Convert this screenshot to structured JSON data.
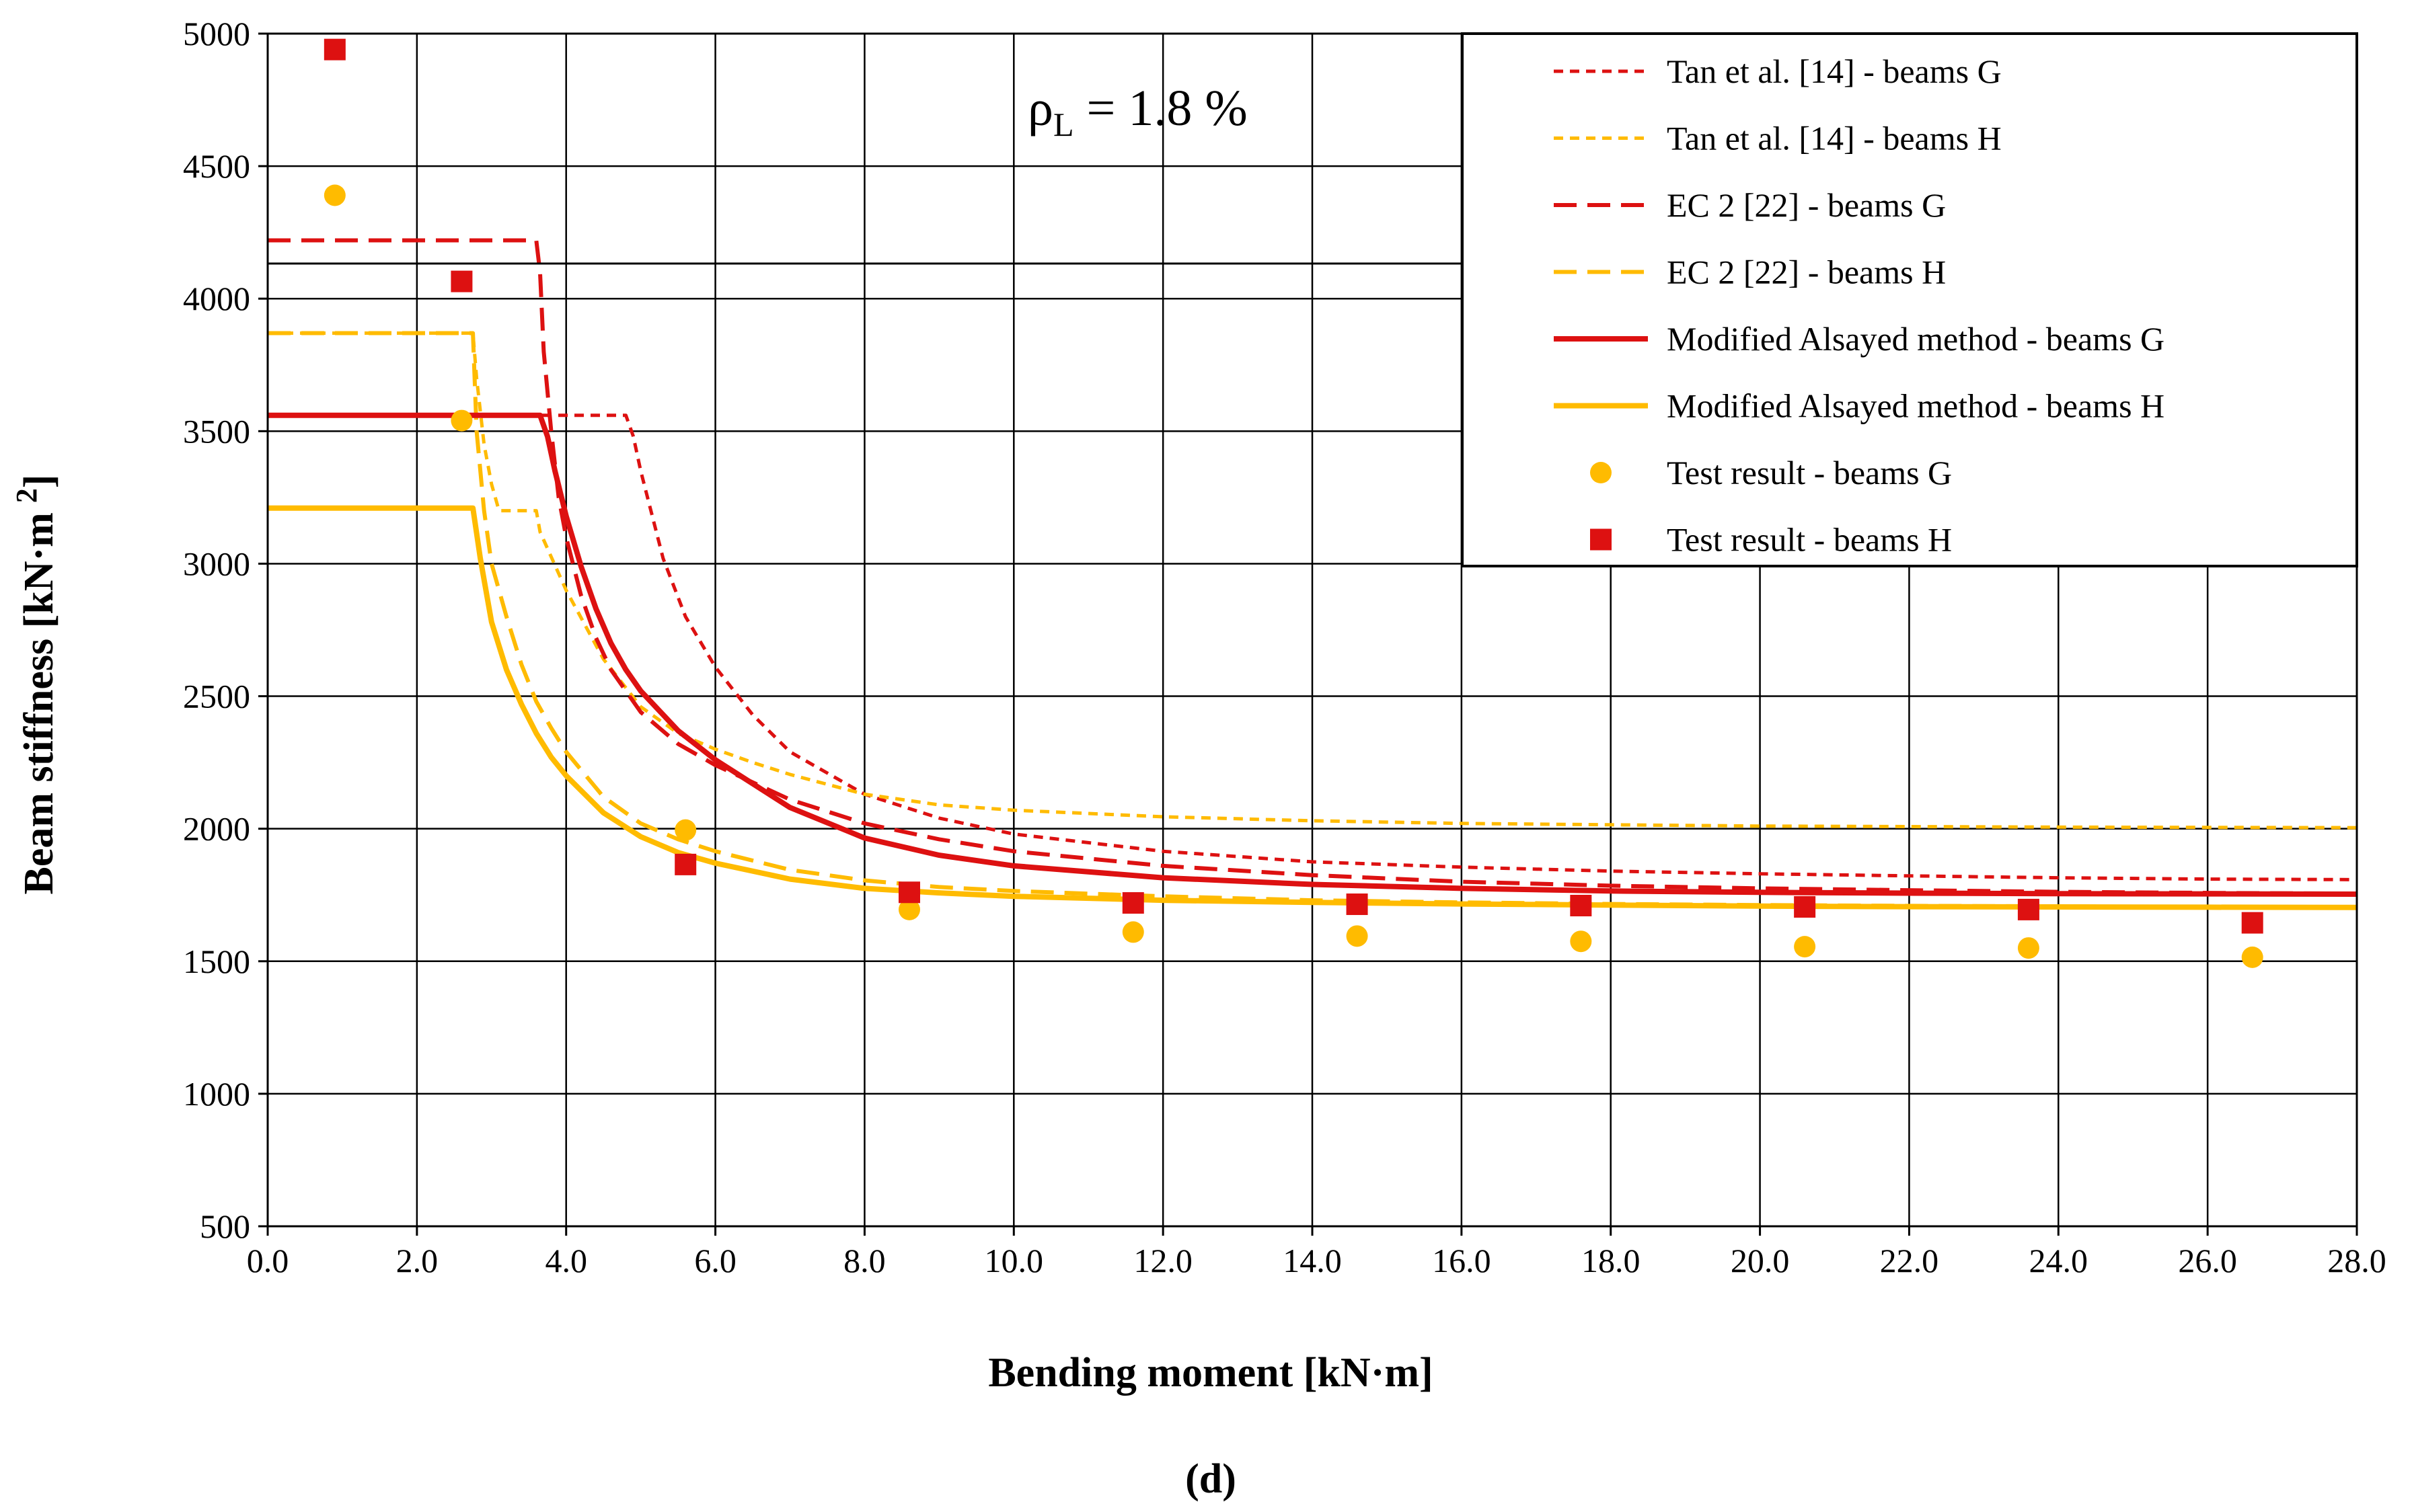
{
  "chart_data": {
    "type": "line",
    "title": "",
    "panel_label": "(d)",
    "annotation": {
      "symbol": "ρ",
      "subscript": "L",
      "text": " = 1.8 %"
    },
    "xlabel": "Bending moment [kN·m]",
    "ylabel_parts": [
      "Beam stiffness [kN·m",
      "2",
      "]"
    ],
    "xlim": [
      0,
      28
    ],
    "ylim": [
      500,
      5000
    ],
    "x_ticks": [
      0,
      2,
      4,
      6,
      8,
      10,
      12,
      14,
      16,
      18,
      20,
      22,
      24,
      26,
      28
    ],
    "x_tick_labels": [
      "0.0",
      "2.0",
      "4.0",
      "6.0",
      "8.0",
      "10.0",
      "12.0",
      "14.0",
      "16.0",
      "18.0",
      "20.0",
      "22.0",
      "24.0",
      "26.0",
      "28.0"
    ],
    "y_ticks": [
      500,
      1000,
      1500,
      2000,
      2500,
      3000,
      3500,
      4000,
      4500,
      5000
    ],
    "y_tick_labels": [
      "500",
      "1000",
      "1500",
      "2000",
      "2500",
      "3000",
      "3500",
      "4000",
      "4500",
      "5000"
    ],
    "grid": true,
    "legend_position": "top-right",
    "colors": {
      "red": "#dd1111",
      "yellow": "#ffbb00"
    },
    "series": [
      {
        "name": "Tan et al.  [14] - beams G",
        "style": "short-dash",
        "color": "#dd1111",
        "width": 5,
        "x": [
          0,
          4.8,
          4.9,
          5.0,
          5.3,
          5.6,
          6.0,
          6.5,
          7.0,
          8.0,
          9.0,
          10.0,
          12.0,
          14.0,
          16.0,
          18.0,
          20.0,
          22.0,
          24.0,
          26.0,
          28.0
        ],
        "values": [
          3560,
          3560,
          3480,
          3350,
          3020,
          2800,
          2610,
          2430,
          2290,
          2130,
          2040,
          1980,
          1915,
          1875,
          1855,
          1840,
          1830,
          1822,
          1815,
          1810,
          1808
        ]
      },
      {
        "name": "Tan et al.  [14] - beams H",
        "style": "short-dash",
        "color": "#ffbb00",
        "width": 5,
        "x": [
          0,
          2.75,
          2.8,
          2.9,
          3.0,
          3.1,
          3.6,
          3.65,
          4.0,
          4.5,
          5.0,
          5.5,
          6.0,
          6.5,
          7.0,
          8.0,
          9.0,
          10.0,
          12.0,
          14.0,
          16.0,
          18.0,
          20.0,
          22.0,
          24.0,
          26.0,
          28.0
        ],
        "values": [
          3870,
          3870,
          3700,
          3450,
          3300,
          3200,
          3200,
          3120,
          2900,
          2640,
          2460,
          2360,
          2300,
          2250,
          2205,
          2130,
          2090,
          2070,
          2045,
          2030,
          2020,
          2015,
          2010,
          2008,
          2006,
          2005,
          2004
        ]
      },
      {
        "name": "EC 2 [22] - beams G",
        "style": "long-dash",
        "color": "#dd1111",
        "width": 6,
        "x": [
          0,
          3.6,
          3.65,
          3.7,
          3.8,
          3.9,
          4.0,
          4.2,
          4.4,
          4.6,
          5.0,
          5.5,
          6.0,
          7.0,
          8.0,
          9.0,
          10.0,
          12.0,
          14.0,
          16.0,
          18.0,
          20.0,
          22.0,
          24.0,
          26.0,
          28.0
        ],
        "values": [
          4220,
          4220,
          4100,
          3800,
          3500,
          3250,
          3100,
          2880,
          2720,
          2600,
          2440,
          2320,
          2240,
          2110,
          2020,
          1960,
          1915,
          1860,
          1825,
          1800,
          1785,
          1775,
          1768,
          1762,
          1758,
          1755
        ]
      },
      {
        "name": "EC 2 [22] - beams H",
        "style": "long-dash",
        "color": "#ffbb00",
        "width": 6,
        "x": [
          0,
          2.75,
          2.8,
          2.9,
          3.0,
          3.2,
          3.4,
          3.6,
          3.8,
          4.0,
          4.5,
          5.0,
          5.5,
          6.0,
          7.0,
          8.0,
          9.0,
          10.0,
          12.0,
          14.0,
          16.0,
          18.0,
          20.0,
          22.0,
          24.0,
          26.0,
          28.0
        ],
        "values": [
          3870,
          3870,
          3500,
          3200,
          3000,
          2800,
          2620,
          2480,
          2380,
          2290,
          2120,
          2020,
          1960,
          1915,
          1845,
          1805,
          1780,
          1765,
          1745,
          1730,
          1722,
          1716,
          1712,
          1709,
          1707,
          1705,
          1704
        ]
      },
      {
        "name": "Modified Alsayed method - beams G",
        "style": "solid",
        "color": "#dd1111",
        "width": 8,
        "x": [
          0,
          3.65,
          3.75,
          3.85,
          4.0,
          4.2,
          4.4,
          4.6,
          4.8,
          5.0,
          5.5,
          6.0,
          7.0,
          8.0,
          9.0,
          10.0,
          12.0,
          14.0,
          16.0,
          18.0,
          20.0,
          22.0,
          24.0,
          26.0,
          28.0
        ],
        "values": [
          3560,
          3560,
          3480,
          3350,
          3180,
          2990,
          2830,
          2700,
          2600,
          2520,
          2370,
          2260,
          2080,
          1965,
          1900,
          1860,
          1815,
          1790,
          1775,
          1765,
          1760,
          1757,
          1755,
          1754,
          1753
        ]
      },
      {
        "name": "Modified Alsayed method - beams H",
        "style": "solid",
        "color": "#ffbb00",
        "width": 8,
        "x": [
          0,
          2.75,
          2.85,
          3.0,
          3.2,
          3.4,
          3.6,
          3.8,
          4.0,
          4.5,
          5.0,
          5.5,
          6.0,
          7.0,
          8.0,
          9.0,
          10.0,
          12.0,
          14.0,
          16.0,
          18.0,
          20.0,
          22.0,
          24.0,
          26.0,
          28.0
        ],
        "values": [
          3210,
          3210,
          3020,
          2780,
          2600,
          2470,
          2360,
          2270,
          2200,
          2060,
          1970,
          1910,
          1870,
          1810,
          1775,
          1758,
          1745,
          1730,
          1722,
          1716,
          1712,
          1708,
          1706,
          1705,
          1704,
          1703
        ]
      },
      {
        "name": "Test result - beams G",
        "style": "markers-circle",
        "color": "#ffbb00",
        "x": [
          0.9,
          2.6,
          5.6,
          8.6,
          11.6,
          14.6,
          17.6,
          20.6,
          23.6,
          26.6
        ],
        "values": [
          4390,
          3540,
          1995,
          1695,
          1610,
          1595,
          1575,
          1555,
          1550,
          1515
        ]
      },
      {
        "name": "Test result - beams H",
        "style": "markers-square",
        "color": "#dd1111",
        "x": [
          0.9,
          2.6,
          5.6,
          8.6,
          11.6,
          14.6,
          17.6,
          20.6,
          23.6,
          26.6
        ],
        "values": [
          4940,
          4065,
          1865,
          1760,
          1720,
          1715,
          1710,
          1705,
          1695,
          1645
        ]
      }
    ]
  }
}
